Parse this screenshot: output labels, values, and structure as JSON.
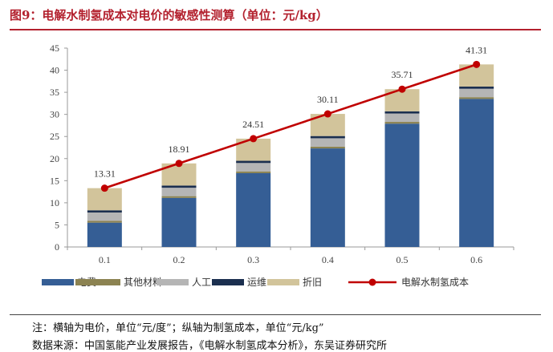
{
  "figure": {
    "title": "图9：电解水制氢成本对电价的敏感性测算（单位：元/kg）",
    "note": "注：横轴为电价，单位“元/度”；纵轴为制氢成本，单位“元/kg”",
    "source": "数据来源：中国氢能产业发展报告，《电解水制氢成本分析》，东吴证券研究所"
  },
  "chart_data": {
    "type": "bar",
    "stacked": true,
    "categories": [
      "0.1",
      "0.2",
      "0.3",
      "0.4",
      "0.5",
      "0.6"
    ],
    "series": [
      {
        "name": "电费",
        "color": "#355e95",
        "values": [
          5.5,
          11.1,
          16.7,
          22.3,
          27.9,
          33.5
        ]
      },
      {
        "name": "其他材料",
        "color": "#8c8352",
        "values": [
          0.4,
          0.4,
          0.4,
          0.4,
          0.4,
          0.4
        ]
      },
      {
        "name": "人工",
        "color": "#b5b5b5",
        "values": [
          1.9,
          1.9,
          1.9,
          1.9,
          1.9,
          1.9
        ]
      },
      {
        "name": "运维",
        "color": "#1b2f4f",
        "values": [
          0.5,
          0.5,
          0.5,
          0.5,
          0.5,
          0.5
        ]
      },
      {
        "name": "折旧",
        "color": "#d2c49b",
        "values": [
          5.01,
          5.01,
          5.01,
          5.01,
          5.01,
          5.01
        ]
      }
    ],
    "line": {
      "name": "电解水制氢成本",
      "color": "#c00000",
      "values": [
        13.31,
        18.91,
        24.51,
        30.11,
        35.71,
        41.31
      ],
      "labels": [
        "13.31",
        "18.91",
        "24.51",
        "30.11",
        "35.71",
        "41.31"
      ]
    },
    "ylim": [
      0,
      45
    ],
    "yticks": [
      "0",
      "5",
      "10",
      "15",
      "20",
      "25",
      "30",
      "35",
      "40",
      "45"
    ],
    "xlabel": "",
    "ylabel": "",
    "grid": false,
    "legend_position": "bottom"
  }
}
